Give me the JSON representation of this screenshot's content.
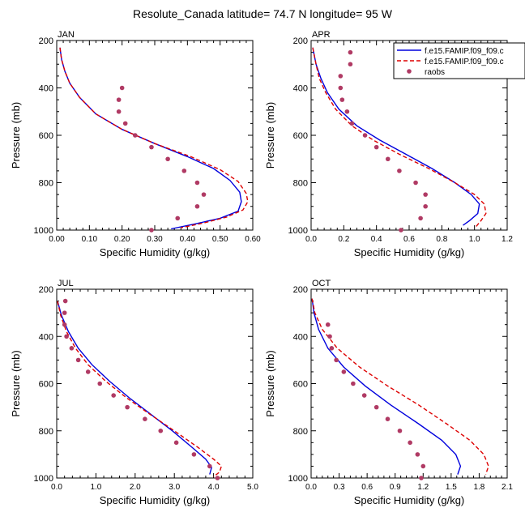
{
  "title": "Resolute_Canada  latitude= 74.7 N longitude= 95 W",
  "legend": {
    "entries": [
      "f.e15.FAMIP.f09_f09.c",
      "f.e15.FAMIP.f09_f09.c",
      "raobs"
    ]
  },
  "colors": {
    "model1": "#0000dd",
    "model2": "#dd0000",
    "raobs": "#b03a64"
  },
  "chart_data": [
    {
      "type": "line",
      "panel_label": "JAN",
      "xlabel": "Specific Humidity (g/kg)",
      "ylabel": "Pressure (mb)",
      "xlim": [
        0,
        0.6
      ],
      "ylim": [
        1000,
        200
      ],
      "xticks": [
        "0.00",
        "0.10",
        "0.20",
        "0.30",
        "0.40",
        "0.50",
        "0.60"
      ],
      "xtick_values": [
        0,
        0.1,
        0.2,
        0.3,
        0.4,
        0.5,
        0.6
      ],
      "yticks": [
        200,
        400,
        600,
        800,
        1000
      ],
      "series": [
        {
          "name": "f.e15.FAMIP.f09_f09.c",
          "style": "solid",
          "points": [
            [
              0.01,
              230
            ],
            [
              0.015,
              280
            ],
            [
              0.025,
              330
            ],
            [
              0.04,
              380
            ],
            [
              0.07,
              440
            ],
            [
              0.12,
              510
            ],
            [
              0.2,
              575
            ],
            [
              0.3,
              635
            ],
            [
              0.4,
              690
            ],
            [
              0.48,
              740
            ],
            [
              0.53,
              790
            ],
            [
              0.56,
              840
            ],
            [
              0.565,
              880
            ],
            [
              0.555,
              920
            ],
            [
              0.5,
              950
            ],
            [
              0.42,
              975
            ],
            [
              0.35,
              995
            ]
          ]
        },
        {
          "name": "f.e15.FAMIP.f09_f09.c",
          "style": "dashed",
          "points": [
            [
              0.01,
              230
            ],
            [
              0.015,
              280
            ],
            [
              0.025,
              330
            ],
            [
              0.04,
              380
            ],
            [
              0.07,
              440
            ],
            [
              0.12,
              510
            ],
            [
              0.2,
              575
            ],
            [
              0.3,
              635
            ],
            [
              0.41,
              690
            ],
            [
              0.5,
              745
            ],
            [
              0.555,
              795
            ],
            [
              0.58,
              845
            ],
            [
              0.585,
              880
            ],
            [
              0.57,
              915
            ],
            [
              0.52,
              945
            ],
            [
              0.45,
              970
            ],
            [
              0.38,
              990
            ]
          ]
        }
      ],
      "raobs": [
        [
          0.2,
          400
        ],
        [
          0.19,
          450
        ],
        [
          0.19,
          500
        ],
        [
          0.21,
          550
        ],
        [
          0.24,
          600
        ],
        [
          0.29,
          650
        ],
        [
          0.34,
          700
        ],
        [
          0.39,
          750
        ],
        [
          0.43,
          800
        ],
        [
          0.45,
          850
        ],
        [
          0.43,
          900
        ],
        [
          0.37,
          950
        ],
        [
          0.29,
          1000
        ]
      ]
    },
    {
      "type": "line",
      "panel_label": "APR",
      "xlabel": "Specific Humidity (g/kg)",
      "ylabel": "Pressure (mb)",
      "xlim": [
        0,
        1.2
      ],
      "ylim": [
        1000,
        200
      ],
      "xticks": [
        "0.0",
        "0.2",
        "0.4",
        "0.6",
        "0.8",
        "1.0",
        "1.2"
      ],
      "xtick_values": [
        0,
        0.2,
        0.4,
        0.6,
        0.8,
        1.0,
        1.2
      ],
      "yticks": [
        200,
        400,
        600,
        800,
        1000
      ],
      "series": [
        {
          "name": "f.e15.FAMIP.f09_f09.c",
          "style": "solid",
          "points": [
            [
              0.01,
              230
            ],
            [
              0.03,
              300
            ],
            [
              0.06,
              360
            ],
            [
              0.1,
              420
            ],
            [
              0.17,
              490
            ],
            [
              0.28,
              560
            ],
            [
              0.42,
              620
            ],
            [
              0.58,
              680
            ],
            [
              0.74,
              740
            ],
            [
              0.88,
              800
            ],
            [
              0.98,
              850
            ],
            [
              1.03,
              890
            ],
            [
              1.02,
              930
            ],
            [
              0.97,
              960
            ],
            [
              0.93,
              980
            ]
          ]
        },
        {
          "name": "f.e15.FAMIP.f09_f09.c",
          "style": "dashed",
          "points": [
            [
              0.01,
              230
            ],
            [
              0.03,
              300
            ],
            [
              0.05,
              360
            ],
            [
              0.09,
              420
            ],
            [
              0.15,
              490
            ],
            [
              0.25,
              560
            ],
            [
              0.38,
              620
            ],
            [
              0.54,
              680
            ],
            [
              0.72,
              740
            ],
            [
              0.88,
              800
            ],
            [
              1.0,
              850
            ],
            [
              1.06,
              890
            ],
            [
              1.07,
              930
            ],
            [
              1.04,
              960
            ],
            [
              1.01,
              985
            ]
          ]
        }
      ],
      "raobs": [
        [
          0.24,
          250
        ],
        [
          0.24,
          300
        ],
        [
          0.18,
          350
        ],
        [
          0.18,
          400
        ],
        [
          0.19,
          450
        ],
        [
          0.22,
          500
        ],
        [
          0.25,
          550
        ],
        [
          0.33,
          600
        ],
        [
          0.4,
          650
        ],
        [
          0.47,
          700
        ],
        [
          0.54,
          750
        ],
        [
          0.64,
          800
        ],
        [
          0.7,
          850
        ],
        [
          0.7,
          900
        ],
        [
          0.67,
          950
        ],
        [
          0.55,
          1000
        ]
      ]
    },
    {
      "type": "line",
      "panel_label": "JUL",
      "xlabel": "Specific Humidity (g/kg)",
      "ylabel": "Pressure (mb)",
      "xlim": [
        0,
        5.0
      ],
      "ylim": [
        1000,
        200
      ],
      "xticks": [
        "0.0",
        "1.0",
        "2.0",
        "3.0",
        "4.0",
        "5.0"
      ],
      "xtick_values": [
        0,
        1,
        2,
        3,
        4,
        5
      ],
      "yticks": [
        200,
        400,
        600,
        800,
        1000
      ],
      "series": [
        {
          "name": "f.e15.FAMIP.f09_f09.c",
          "style": "solid",
          "points": [
            [
              0.02,
              250
            ],
            [
              0.12,
              310
            ],
            [
              0.3,
              380
            ],
            [
              0.55,
              450
            ],
            [
              0.9,
              520
            ],
            [
              1.35,
              590
            ],
            [
              1.85,
              660
            ],
            [
              2.4,
              730
            ],
            [
              2.95,
              800
            ],
            [
              3.45,
              870
            ],
            [
              3.8,
              920
            ],
            [
              3.95,
              955
            ],
            [
              3.9,
              985
            ]
          ]
        },
        {
          "name": "f.e15.FAMIP.f09_f09.c",
          "style": "dashed",
          "points": [
            [
              0.02,
              250
            ],
            [
              0.1,
              310
            ],
            [
              0.25,
              380
            ],
            [
              0.48,
              450
            ],
            [
              0.8,
              520
            ],
            [
              1.25,
              590
            ],
            [
              1.78,
              660
            ],
            [
              2.38,
              730
            ],
            [
              3.0,
              800
            ],
            [
              3.6,
              870
            ],
            [
              4.0,
              920
            ],
            [
              4.2,
              950
            ],
            [
              4.15,
              975
            ],
            [
              4.0,
              995
            ]
          ]
        }
      ],
      "raobs": [
        [
          0.22,
          250
        ],
        [
          0.2,
          300
        ],
        [
          0.2,
          350
        ],
        [
          0.25,
          400
        ],
        [
          0.38,
          450
        ],
        [
          0.55,
          500
        ],
        [
          0.8,
          550
        ],
        [
          1.1,
          600
        ],
        [
          1.45,
          650
        ],
        [
          1.8,
          700
        ],
        [
          2.25,
          750
        ],
        [
          2.65,
          800
        ],
        [
          3.05,
          850
        ],
        [
          3.5,
          900
        ],
        [
          3.9,
          950
        ],
        [
          4.1,
          1000
        ]
      ]
    },
    {
      "type": "line",
      "panel_label": "OCT",
      "xlabel": "Specific Humidity (g/kg)",
      "ylabel": "Pressure (mb)",
      "xlim": [
        0,
        2.1
      ],
      "ylim": [
        1000,
        200
      ],
      "xticks": [
        "0.0",
        "0.3",
        "0.6",
        "0.9",
        "1.2",
        "1.5",
        "1.8",
        "2.1"
      ],
      "xtick_values": [
        0,
        0.3,
        0.6,
        0.9,
        1.2,
        1.5,
        1.8,
        2.1
      ],
      "yticks": [
        200,
        400,
        600,
        800,
        1000
      ],
      "series": [
        {
          "name": "f.e15.FAMIP.f09_f09.c",
          "style": "solid",
          "points": [
            [
              0.01,
              240
            ],
            [
              0.03,
              300
            ],
            [
              0.08,
              370
            ],
            [
              0.18,
              450
            ],
            [
              0.35,
              530
            ],
            [
              0.58,
              610
            ],
            [
              0.85,
              690
            ],
            [
              1.15,
              770
            ],
            [
              1.4,
              840
            ],
            [
              1.55,
              900
            ],
            [
              1.6,
              950
            ],
            [
              1.57,
              985
            ]
          ]
        },
        {
          "name": "f.e15.FAMIP.f09_f09.c",
          "style": "dashed",
          "points": [
            [
              0.01,
              240
            ],
            [
              0.04,
              300
            ],
            [
              0.12,
              370
            ],
            [
              0.28,
              450
            ],
            [
              0.52,
              530
            ],
            [
              0.82,
              610
            ],
            [
              1.15,
              690
            ],
            [
              1.45,
              770
            ],
            [
              1.7,
              840
            ],
            [
              1.85,
              900
            ],
            [
              1.9,
              950
            ],
            [
              1.87,
              985
            ]
          ]
        }
      ],
      "raobs": [
        [
          0.18,
          350
        ],
        [
          0.2,
          400
        ],
        [
          0.22,
          450
        ],
        [
          0.27,
          500
        ],
        [
          0.35,
          550
        ],
        [
          0.45,
          600
        ],
        [
          0.57,
          650
        ],
        [
          0.7,
          700
        ],
        [
          0.82,
          750
        ],
        [
          0.95,
          800
        ],
        [
          1.06,
          850
        ],
        [
          1.14,
          900
        ],
        [
          1.2,
          950
        ],
        [
          1.18,
          1000
        ]
      ]
    }
  ]
}
